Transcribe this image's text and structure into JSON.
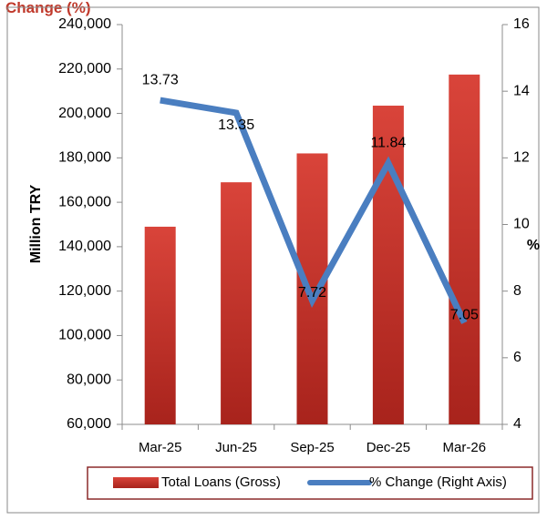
{
  "header": {
    "text": "Change (%)"
  },
  "chart_data": {
    "type": "bar",
    "categories": [
      "Mar-25",
      "Jun-25",
      "Sep-25",
      "Dec-25",
      "Mar-26"
    ],
    "series": [
      {
        "name": "Total Loans (Gross)",
        "type": "bar",
        "axis": "left",
        "values": [
          149000,
          169000,
          182000,
          203500,
          217500
        ],
        "color": "#c0392b"
      },
      {
        "name": "% Change (Right Axis)",
        "type": "line",
        "axis": "right",
        "values": [
          13.73,
          13.35,
          7.72,
          11.84,
          7.05
        ],
        "labels": [
          "13.73",
          "13.35",
          "7.72",
          "11.84",
          "7.05"
        ],
        "color": "#4a7ec0"
      }
    ],
    "ylabel": "Million TRY",
    "y2label": "%",
    "ylim": [
      60000,
      240000
    ],
    "y2lim": [
      4,
      16
    ],
    "yticks": [
      "60,000",
      "80,000",
      "100,000",
      "120,000",
      "140,000",
      "160,000",
      "180,000",
      "200,000",
      "220,000",
      "240,000"
    ],
    "y2ticks": [
      "4",
      "6",
      "8",
      "10",
      "12",
      "14",
      "16"
    ],
    "grid": false,
    "legend": "bottom"
  }
}
